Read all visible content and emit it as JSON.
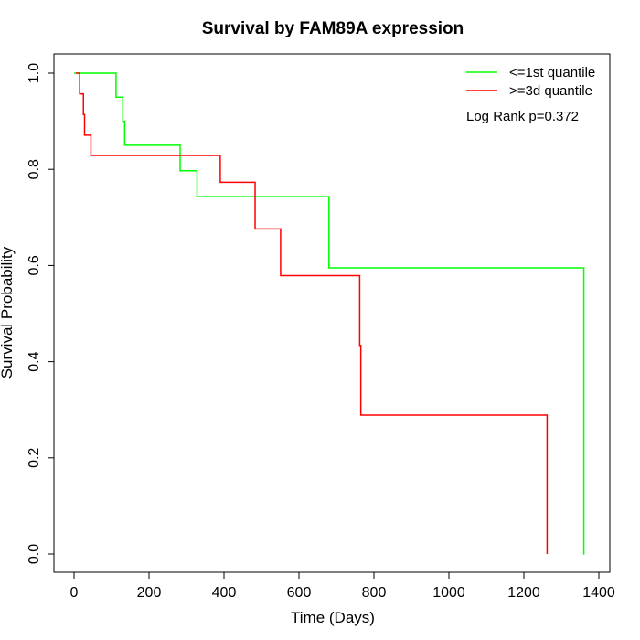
{
  "chart_data": {
    "type": "line",
    "subtype": "kaplan-meier step",
    "title": "Survival by FAM89A expression",
    "xlabel": "Time (Days)",
    "ylabel": "Survival Probability",
    "xlim": [
      0,
      1400
    ],
    "ylim": [
      0,
      1.0
    ],
    "x_ticks": [
      0,
      200,
      400,
      600,
      800,
      1000,
      1200,
      1400
    ],
    "y_ticks": [
      0.0,
      0.2,
      0.4,
      0.6,
      0.8,
      1.0
    ],
    "x_tick_labels": [
      "0",
      "200",
      "400",
      "600",
      "800",
      "1000",
      "1200",
      "1400"
    ],
    "y_tick_labels": [
      "0.0",
      "0.2",
      "0.4",
      "0.6",
      "0.8",
      "1.0"
    ],
    "grid": false,
    "legend_position": "top-right",
    "annotation": "Log Rank p=0.372",
    "series": [
      {
        "name": "<=1st quantile",
        "color": "#00ff00",
        "x": [
          0,
          112,
          130,
          135,
          283,
          328,
          680,
          1360,
          1362
        ],
        "y": [
          1.0,
          0.95,
          0.9,
          0.85,
          0.797,
          0.743,
          0.595,
          0.0,
          0.0
        ]
      },
      {
        "name": ">=3d quantile",
        "color": "#ff0000",
        "x": [
          5,
          15,
          25,
          28,
          45,
          390,
          483,
          551,
          762,
          765,
          1262,
          1262
        ],
        "y": [
          1.0,
          0.957,
          0.914,
          0.871,
          0.829,
          0.773,
          0.676,
          0.579,
          0.434,
          0.289,
          0.0,
          0.0
        ]
      }
    ]
  }
}
